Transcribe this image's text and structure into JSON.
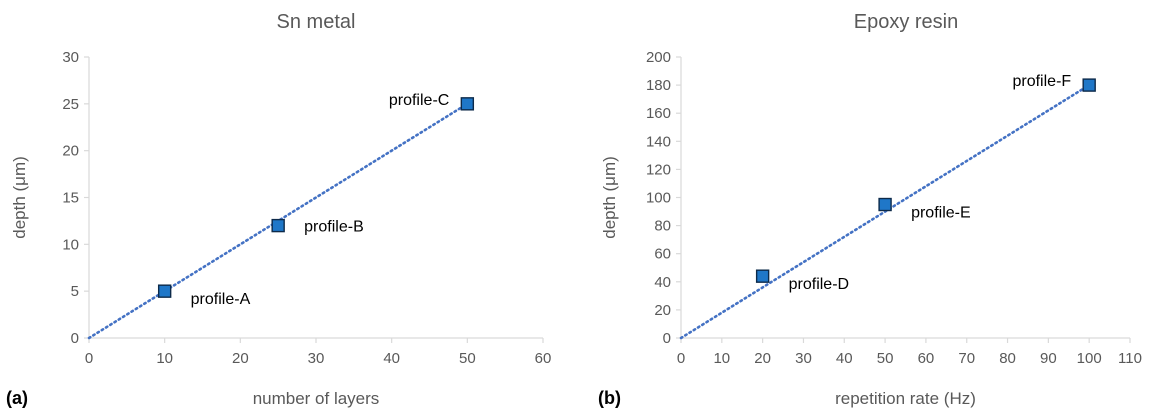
{
  "colors": {
    "axis": "#d9d9d9",
    "text": "#595959",
    "marker_fill": "#1f77c8",
    "marker_stroke": "#0d2a4a",
    "trendline": "#4472c4"
  },
  "chart_data": [
    {
      "type": "scatter",
      "panel_label": "(a)",
      "title": "Sn metal",
      "xlabel": "number of layers",
      "ylabel": "depth (μm)",
      "xlim": [
        0,
        60
      ],
      "ylim": [
        0,
        30
      ],
      "xticks": [
        0,
        10,
        20,
        30,
        40,
        50,
        60
      ],
      "yticks": [
        0,
        5,
        10,
        15,
        20,
        25,
        30
      ],
      "grid": false,
      "legend": "none",
      "trendline": "linear dotted through origin",
      "trendline_end": [
        50,
        25
      ],
      "points": [
        {
          "x": 10,
          "y": 5,
          "label": "profile-A",
          "label_pos": "right-below"
        },
        {
          "x": 25,
          "y": 12,
          "label": "profile-B",
          "label_pos": "right"
        },
        {
          "x": 50,
          "y": 25,
          "label": "profile-C",
          "label_pos": "left"
        }
      ]
    },
    {
      "type": "scatter",
      "panel_label": "(b)",
      "title": "Epoxy resin",
      "xlabel": "repetition rate (Hz)",
      "ylabel": "depth (μm)",
      "xlim": [
        0,
        110
      ],
      "ylim": [
        0,
        200
      ],
      "xticks": [
        0,
        10,
        20,
        30,
        40,
        50,
        60,
        70,
        80,
        90,
        100,
        110
      ],
      "yticks": [
        0,
        20,
        40,
        60,
        80,
        100,
        120,
        140,
        160,
        180,
        200
      ],
      "grid": false,
      "legend": "none",
      "trendline": "linear dotted through origin",
      "trendline_end": [
        100,
        180
      ],
      "points": [
        {
          "x": 20,
          "y": 44,
          "label": "profile-D",
          "label_pos": "right-below"
        },
        {
          "x": 50,
          "y": 95,
          "label": "profile-E",
          "label_pos": "right-below"
        },
        {
          "x": 100,
          "y": 180,
          "label": "profile-F",
          "label_pos": "left"
        }
      ]
    }
  ]
}
